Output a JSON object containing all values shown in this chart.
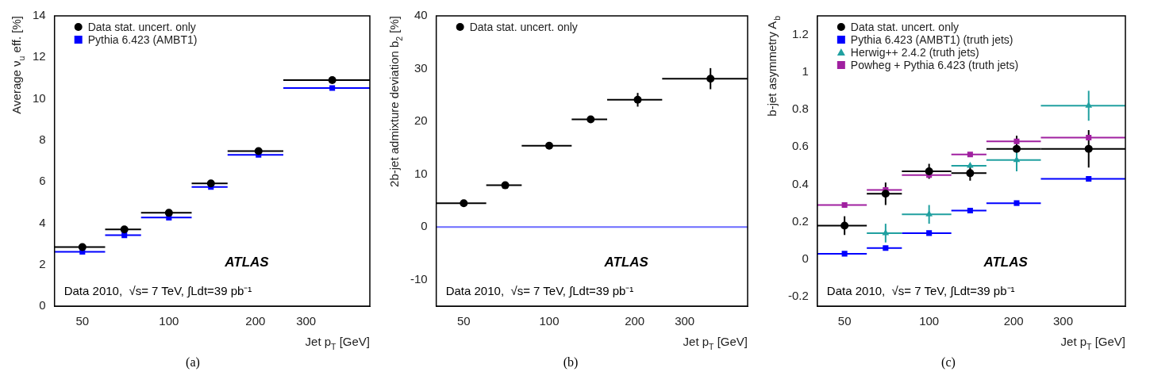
{
  "chart_data": [
    {
      "type": "scatter",
      "title": "(a)",
      "x": [
        50,
        70,
        100,
        140,
        205,
        370
      ],
      "log": "x",
      "xlim": [
        40,
        500
      ],
      "xticks": [
        50,
        100,
        200,
        300
      ],
      "ylim": [
        0,
        14
      ],
      "yticks": [
        0,
        2,
        4,
        6,
        8,
        10,
        12,
        14
      ],
      "xlabel": "Jet p$_{T}$ [GeV]",
      "ylabel": "Average ν$_{u}$ eff. [%]",
      "legend": "top left",
      "annotations": [
        "ATLAS",
        "Data 2010,  √s= 7 TeV, ∫Ldt=39 pb⁻¹"
      ],
      "series": [
        {
          "name": "Data stat. uncert. only",
          "color": "#000000",
          "marker": "circle",
          "values": [
            2.85,
            3.7,
            4.5,
            5.92,
            7.48,
            10.9
          ],
          "xerrors": [
            [
              40,
              60
            ],
            [
              60,
              80
            ],
            [
              80,
              120
            ],
            [
              120,
              160
            ],
            [
              160,
              250
            ],
            [
              250,
              500
            ]
          ]
        },
        {
          "name": "Pythia 6.423 (AMBT1)",
          "color": "#0000ff",
          "marker": "square",
          "values": [
            2.62,
            3.42,
            4.27,
            5.75,
            7.3,
            10.52
          ],
          "xerrors": [
            [
              40,
              60
            ],
            [
              60,
              80
            ],
            [
              80,
              120
            ],
            [
              120,
              160
            ],
            [
              160,
              250
            ],
            [
              250,
              500
            ]
          ]
        }
      ]
    },
    {
      "type": "scatter",
      "title": "(b)",
      "x": [
        50,
        70,
        100,
        140,
        205,
        370
      ],
      "log": "x",
      "xlim": [
        40,
        500
      ],
      "xticks": [
        50,
        100,
        200,
        300
      ],
      "ylim": [
        -15,
        40
      ],
      "yticks": [
        -10,
        0,
        10,
        20,
        30,
        40
      ],
      "xlabel": "Jet p$_{T}$ [GeV]",
      "ylabel": "2b-jet admixture deviation b$_{2}$ [%]",
      "legend": "top left",
      "annotations": [
        "ATLAS",
        "Data 2010,  √s= 7 TeV, ∫Ldt=39 pb⁻¹"
      ],
      "ref_lines": [
        {
          "axis": "y",
          "value": 0,
          "color": "#6a6aff"
        }
      ],
      "series": [
        {
          "name": "Data stat. uncert. only",
          "color": "#000000",
          "marker": "circle",
          "values": [
            4.5,
            7.9,
            15.4,
            20.4,
            24.1,
            28.1
          ],
          "errors": [
            0.5,
            0.6,
            0.5,
            0.5,
            1.3,
            2
          ],
          "xerrors": [
            [
              40,
              60
            ],
            [
              60,
              80
            ],
            [
              80,
              120
            ],
            [
              120,
              160
            ],
            [
              160,
              250
            ],
            [
              250,
              500
            ]
          ]
        }
      ]
    },
    {
      "type": "scatter",
      "title": "(c)",
      "x": [
        50,
        70,
        100,
        140,
        205,
        370
      ],
      "log": "x",
      "xlim": [
        40,
        500
      ],
      "xticks": [
        50,
        100,
        200,
        300
      ],
      "ylim": [
        -0.25,
        1.3
      ],
      "yticks": [
        -0.2,
        0,
        0.2,
        0.4,
        0.6,
        0.8,
        1,
        1.2
      ],
      "xlabel": "Jet p$_{T}$ [GeV]",
      "ylabel": "b-jet asymmetry A$_{b}$",
      "legend": "top left",
      "annotations": [
        "ATLAS",
        "Data 2010,  √s= 7 TeV, ∫Ldt=39 pb⁻¹"
      ],
      "series": [
        {
          "name": "Data stat. uncert. only",
          "color": "#000000",
          "marker": "circle",
          "values": [
            0.18,
            0.35,
            0.47,
            0.46,
            0.59,
            0.59
          ],
          "errors": [
            0.05,
            0.06,
            0.04,
            0.04,
            0.07,
            0.1
          ],
          "xerrors": [
            [
              40,
              60
            ],
            [
              60,
              80
            ],
            [
              80,
              120
            ],
            [
              120,
              160
            ],
            [
              160,
              250
            ],
            [
              250,
              500
            ]
          ]
        },
        {
          "name": "Pythia 6.423 (AMBT1) (truth jets)",
          "color": "#0000ff",
          "marker": "square",
          "values": [
            0.03,
            0.06,
            0.14,
            0.26,
            0.3,
            0.43
          ],
          "xerrors": [
            [
              40,
              60
            ],
            [
              60,
              80
            ],
            [
              80,
              120
            ],
            [
              120,
              160
            ],
            [
              160,
              250
            ],
            [
              250,
              500
            ]
          ]
        },
        {
          "name": "Herwig++ 2.4.2 (truth jets)",
          "color": "#20a0a0",
          "marker": "triangle",
          "values": [
            null,
            0.14,
            0.24,
            0.5,
            0.53,
            0.82
          ],
          "errors": [
            null,
            0.05,
            0.05,
            null,
            0.06,
            0.08
          ],
          "xerrors": [
            null,
            [
              60,
              80
            ],
            [
              80,
              120
            ],
            [
              120,
              160
            ],
            [
              160,
              250
            ],
            [
              250,
              500
            ]
          ]
        },
        {
          "name": "Powheg + Pythia 6.423 (truth jets)",
          "color": "#a020a0",
          "marker": "square",
          "values": [
            0.29,
            0.37,
            0.45,
            0.56,
            0.63,
            0.65
          ],
          "xerrors": [
            [
              40,
              60
            ],
            [
              60,
              80
            ],
            [
              80,
              120
            ],
            [
              120,
              160
            ],
            [
              160,
              250
            ],
            [
              250,
              500
            ]
          ]
        }
      ]
    }
  ]
}
